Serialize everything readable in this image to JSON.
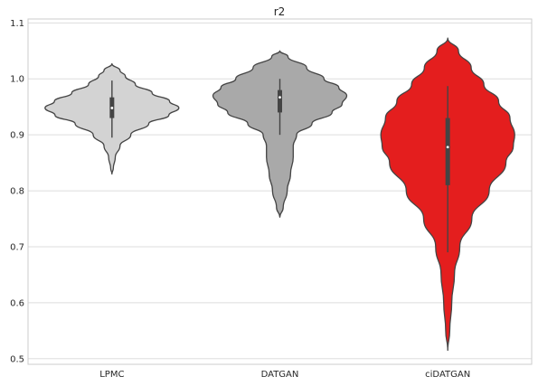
{
  "chart_data": {
    "type": "violin",
    "title": "r2",
    "xlabel": "",
    "ylabel": "",
    "ylim": [
      0.49,
      1.107
    ],
    "yticks": [
      0.5,
      0.6,
      0.7,
      0.8,
      0.9,
      1.0,
      1.1
    ],
    "ytick_labels": [
      "0.5",
      "0.6",
      "0.7",
      "0.8",
      "0.9",
      "1.0",
      "1.1"
    ],
    "grid": "horizontal",
    "categories": [
      "LPMC",
      "DATGAN",
      "ciDATGAN"
    ],
    "colors": [
      "#d3d3d3",
      "#a9a9a9",
      "#e41e1e"
    ],
    "series": [
      {
        "label": "LPMC",
        "min": 0.83,
        "max": 1.027,
        "whisker_low": 0.895,
        "whisker_high": 0.997,
        "q1": 0.93,
        "median": 0.948,
        "q3": 0.967,
        "density": [
          [
            0.83,
            0
          ],
          [
            0.84,
            0.02
          ],
          [
            0.86,
            0.05
          ],
          [
            0.88,
            0.12
          ],
          [
            0.9,
            0.28
          ],
          [
            0.92,
            0.55
          ],
          [
            0.935,
            0.85
          ],
          [
            0.948,
            1.0
          ],
          [
            0.96,
            0.86
          ],
          [
            0.975,
            0.6
          ],
          [
            0.99,
            0.35
          ],
          [
            1.005,
            0.2
          ],
          [
            1.015,
            0.12
          ],
          [
            1.027,
            0
          ]
        ]
      },
      {
        "label": "DATGAN",
        "min": 0.753,
        "max": 1.05,
        "whisker_low": 0.9,
        "whisker_high": 1.0,
        "q1": 0.94,
        "median": 0.967,
        "q3": 0.98,
        "density": [
          [
            0.753,
            0
          ],
          [
            0.77,
            0.05
          ],
          [
            0.8,
            0.11
          ],
          [
            0.83,
            0.16
          ],
          [
            0.86,
            0.2
          ],
          [
            0.88,
            0.2
          ],
          [
            0.9,
            0.25
          ],
          [
            0.92,
            0.48
          ],
          [
            0.94,
            0.78
          ],
          [
            0.955,
            0.93
          ],
          [
            0.97,
            1.0
          ],
          [
            0.985,
            0.88
          ],
          [
            1.0,
            0.66
          ],
          [
            1.02,
            0.4
          ],
          [
            1.04,
            0.12
          ],
          [
            1.05,
            0
          ]
        ]
      },
      {
        "label": "ciDATGAN",
        "min": 0.515,
        "max": 1.073,
        "whisker_low": 0.69,
        "whisker_high": 0.987,
        "q1": 0.81,
        "median": 0.878,
        "q3": 0.93,
        "density": [
          [
            0.515,
            0
          ],
          [
            0.55,
            0.03
          ],
          [
            0.6,
            0.06
          ],
          [
            0.65,
            0.1
          ],
          [
            0.7,
            0.18
          ],
          [
            0.75,
            0.36
          ],
          [
            0.8,
            0.62
          ],
          [
            0.85,
            0.87
          ],
          [
            0.88,
            0.98
          ],
          [
            0.9,
            1.0
          ],
          [
            0.93,
            0.93
          ],
          [
            0.96,
            0.76
          ],
          [
            0.99,
            0.54
          ],
          [
            1.02,
            0.35
          ],
          [
            1.05,
            0.16
          ],
          [
            1.073,
            0
          ]
        ]
      }
    ]
  }
}
